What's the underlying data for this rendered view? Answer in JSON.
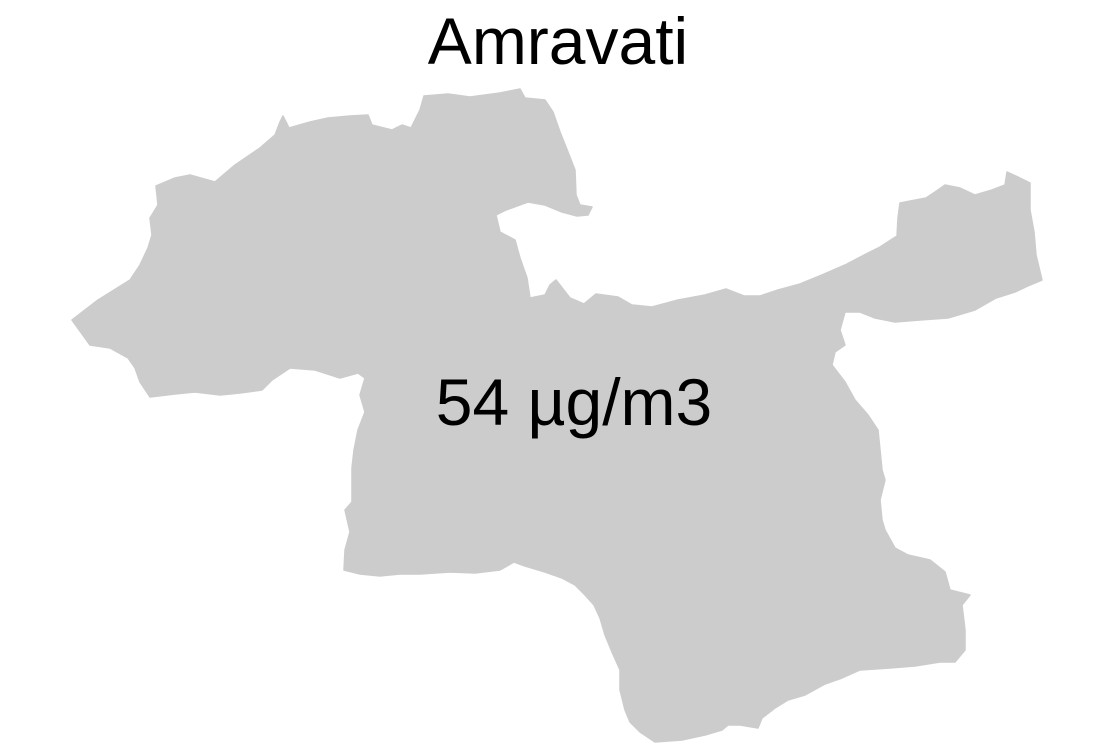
{
  "map": {
    "title": "Amravati",
    "value_label": "54 µg/m3",
    "fill_color": "#cccccc",
    "text_color": "#000000",
    "background_color": "#ffffff"
  }
}
